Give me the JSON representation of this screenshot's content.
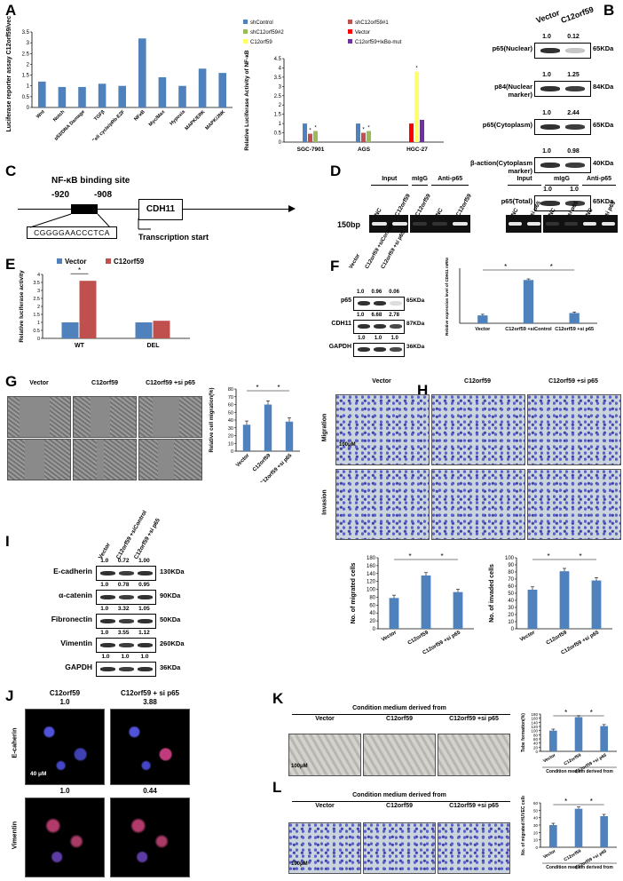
{
  "panels": {
    "A": "A",
    "B": "B",
    "C": "C",
    "D": "D",
    "E": "E",
    "F": "F",
    "G": "G",
    "H": "H",
    "I": "I",
    "J": "J",
    "K": "K",
    "L": "L"
  },
  "chart_data": [
    {
      "id": "A1",
      "type": "bar",
      "ylabel": "Luciferase reporter assay C12orf59/vector",
      "categories": [
        "Wnt",
        "Notch",
        "p53/DNA Damage",
        "TGFβ",
        "Cell cycle/pRb-E2F",
        "NFκB",
        "Myc/Max",
        "Hypoxia",
        "MAPK/ERK",
        "MAPK/JNK"
      ],
      "values": [
        1.2,
        0.95,
        0.95,
        1.1,
        1.0,
        3.2,
        1.4,
        1.0,
        1.8,
        1.6
      ],
      "ylim": [
        0,
        3.5
      ],
      "yticks": [
        "0",
        "0.5",
        "1",
        "1.5",
        "2",
        "2.5",
        "3",
        "3.5"
      ],
      "color": "#4f81bd"
    },
    {
      "id": "A2",
      "type": "bar",
      "ylabel": "Relative Luciferase Activity of NF-κB",
      "categories": [
        "SGC-7901",
        "AGS",
        "HGC-27"
      ],
      "legend": [
        "shControl",
        "shC12orf59#1",
        "shC12orf59#2",
        "Vector",
        "C12orf59",
        "C12orf59+IκBα-mut"
      ],
      "legend_colors": [
        "#4f81bd",
        "#c0504d",
        "#9bbb59",
        "#ff0000",
        "#ffff66",
        "#7030a0"
      ],
      "series": [
        {
          "name": "shControl",
          "values": [
            1.0,
            1.0,
            null
          ]
        },
        {
          "name": "shC12orf59#1",
          "values": [
            0.45,
            0.5,
            null
          ]
        },
        {
          "name": "shC12orf59#2",
          "values": [
            0.6,
            0.6,
            null
          ]
        },
        {
          "name": "Vector",
          "values": [
            null,
            null,
            1.0
          ]
        },
        {
          "name": "C12orf59",
          "values": [
            null,
            null,
            3.8
          ]
        },
        {
          "name": "C12orf59+IκBα-mut",
          "values": [
            null,
            null,
            1.2
          ]
        }
      ],
      "ylim": [
        0,
        4.5
      ],
      "yticks": [
        "0",
        "0.5",
        "1",
        "1.5",
        "2",
        "2.5",
        "3",
        "3.5",
        "4",
        "4.5"
      ]
    },
    {
      "id": "E",
      "type": "bar",
      "ylabel": "Relative luciferase activity",
      "categories": [
        "WT",
        "DEL"
      ],
      "legend": [
        "Vector",
        "C12orf59"
      ],
      "series": [
        {
          "name": "Vector",
          "values": [
            1.0,
            1.0
          ],
          "color": "#4f81bd"
        },
        {
          "name": "C12orf59",
          "values": [
            3.6,
            1.1
          ],
          "color": "#c0504d"
        }
      ],
      "ylim": [
        0,
        4
      ],
      "yticks": [
        "0",
        "0.5",
        "1",
        "1.5",
        "2",
        "2.5",
        "3",
        "3.5",
        "4"
      ]
    },
    {
      "id": "F",
      "type": "bar",
      "ylabel": "Relative expression level of CDH11 mRNA",
      "categories": [
        "Vector",
        "C12orf59 +siControl",
        "C12orf59 +si p65"
      ],
      "values": [
        1.0,
        5.5,
        1.3
      ],
      "ylim": [
        0,
        7
      ]
    },
    {
      "id": "G",
      "type": "bar",
      "ylabel": "Relative cell migration(%)",
      "categories": [
        "Vector",
        "C12orf59",
        "C12orf59 +si p65"
      ],
      "values": [
        34,
        60,
        38
      ],
      "ylim": [
        0,
        80
      ],
      "yticks": [
        "0",
        "10",
        "20",
        "30",
        "40",
        "50",
        "60",
        "70",
        "80"
      ]
    },
    {
      "id": "H1",
      "type": "bar",
      "ylabel": "No. of migrated cells",
      "categories": [
        "Vector",
        "C12orf59",
        "C12orf59 +si p65"
      ],
      "values": [
        78,
        135,
        93
      ],
      "ylim": [
        0,
        180
      ],
      "yticks": [
        "0",
        "20",
        "40",
        "60",
        "80",
        "100",
        "120",
        "140",
        "160",
        "180"
      ]
    },
    {
      "id": "H2",
      "type": "bar",
      "ylabel": "No. of invaded cells",
      "categories": [
        "Vector",
        "C12orf59",
        "C12orf59 +si p65"
      ],
      "values": [
        55,
        81,
        68
      ],
      "ylim": [
        0,
        100
      ],
      "yticks": [
        "0",
        "10",
        "20",
        "30",
        "40",
        "50",
        "60",
        "70",
        "80",
        "90",
        "100"
      ]
    },
    {
      "id": "K",
      "type": "bar",
      "ylabel": "Tube formation(%)",
      "xlabel": "Condition medium derived from",
      "categories": [
        "Vector",
        "C12orf59",
        "C12orf59 +si p65"
      ],
      "values": [
        100,
        165,
        122
      ],
      "ylim": [
        0,
        180
      ],
      "yticks": [
        "0",
        "20",
        "40",
        "60",
        "80",
        "100",
        "120",
        "140",
        "160",
        "180"
      ]
    },
    {
      "id": "L",
      "type": "bar",
      "ylabel": "No. of migrated HUVEC cells",
      "xlabel": "Condition medium derived from",
      "categories": [
        "Vector",
        "C12orf59",
        "C12orf59 +si p65"
      ],
      "values": [
        30,
        52,
        42
      ],
      "ylim": [
        0,
        60
      ],
      "yticks": [
        "0",
        "10",
        "20",
        "30",
        "40",
        "50",
        "60"
      ]
    }
  ],
  "blotB": {
    "header": [
      "Vector",
      "C12orf59"
    ],
    "rows": [
      {
        "label": "p65(Nuclear)",
        "kda": "65KDa",
        "q": [
          "1.0",
          "0.12"
        ]
      },
      {
        "label": "p84(Nuclear marker)",
        "kda": "84KDa",
        "q": [
          "1.0",
          "1.25"
        ]
      },
      {
        "label": "p65(Cytoplasm)",
        "kda": "65KDa",
        "q": [
          "1.0",
          "2.44"
        ]
      },
      {
        "label": "β-action(Cytoplasm marker)",
        "kda": "40KDa",
        "q": [
          "1.0",
          "0.98"
        ]
      },
      {
        "label": "p65(Total)",
        "kda": "65KDa",
        "q": [
          "1.0",
          "1.0"
        ]
      }
    ]
  },
  "panelC": {
    "site": "NF-κB binding site",
    "pos1": "-920",
    "pos2": "-908",
    "gene": "CDH11",
    "seq": "CGGGGAACCCTCA",
    "tss": "Transcription start"
  },
  "panelD": {
    "bp": "150bp",
    "groups1": [
      "Input",
      "mIgG",
      "Anti-p65"
    ],
    "lanes1": [
      "NC",
      "C12orf59",
      "C12orf59",
      "NC",
      "C12orf59"
    ],
    "groups2": [
      "Input",
      "mIgG",
      "Anti-p65"
    ],
    "lanes2": [
      "NC",
      "si p65",
      "NC",
      "si p65",
      "NC",
      "si p65"
    ]
  },
  "blotF": {
    "header": [
      "Vector",
      "C12orf59 +siControl",
      "C12orf59 +si p65"
    ],
    "rows": [
      {
        "label": "p65",
        "kda": "65KDa",
        "q": [
          "1.0",
          "0.96",
          "0.06"
        ]
      },
      {
        "label": "CDH11",
        "kda": "87KDa",
        "q": [
          "1.0",
          "6.68",
          "2.78"
        ]
      },
      {
        "label": "GAPDH",
        "kda": "36KDa",
        "q": [
          "1.0",
          "1.0",
          "1.0"
        ]
      }
    ]
  },
  "panelG": {
    "cols": [
      "Vector",
      "C12orf59",
      "C12orf59 +si p65"
    ]
  },
  "panelH": {
    "cols": [
      "Vector",
      "C12orf59",
      "C12orf59 +si p65"
    ],
    "rows": [
      "Migration",
      "Invasion"
    ],
    "scale": "100μM"
  },
  "blotI": {
    "header": [
      "Vector",
      "C12orf59 +siControl",
      "C12orf59 +si p65"
    ],
    "rows": [
      {
        "label": "E-cadherin",
        "kda": "130KDa",
        "q": [
          "1.0",
          "0.72",
          "1.00"
        ]
      },
      {
        "label": "α-catenin",
        "kda": "90KDa",
        "q": [
          "1.0",
          "0.78",
          "0.95"
        ]
      },
      {
        "label": "Fibronectin",
        "kda": "50KDa",
        "q": [
          "1.0",
          "3.32",
          "1.05"
        ]
      },
      {
        "label": "Vimentin",
        "kda": "260KDa",
        "q": [
          "1.0",
          "3.55",
          "1.12"
        ]
      },
      {
        "label": "GAPDH",
        "kda": "36KDa",
        "q": [
          "1.0",
          "1.0",
          "1.0"
        ]
      }
    ]
  },
  "panelJ": {
    "cols": [
      "C12orf59",
      "C12orf59 + si p65"
    ],
    "rows": [
      "E-caherin",
      "Vimentin"
    ],
    "q1": [
      "1.0",
      "3.88"
    ],
    "q2": [
      "1.0",
      "0.44"
    ],
    "scale": "40 μM"
  },
  "panelK": {
    "header": "Condition medium derived from",
    "cols": [
      "Vector",
      "C12orf59",
      "C12orf59 +si p65"
    ],
    "scale": "100μM"
  },
  "panelL": {
    "header": "Condition medium derived from",
    "cols": [
      "Vector",
      "C12orf59",
      "C12orf59 +si p65"
    ],
    "scale": "100μM"
  },
  "sig": "*"
}
